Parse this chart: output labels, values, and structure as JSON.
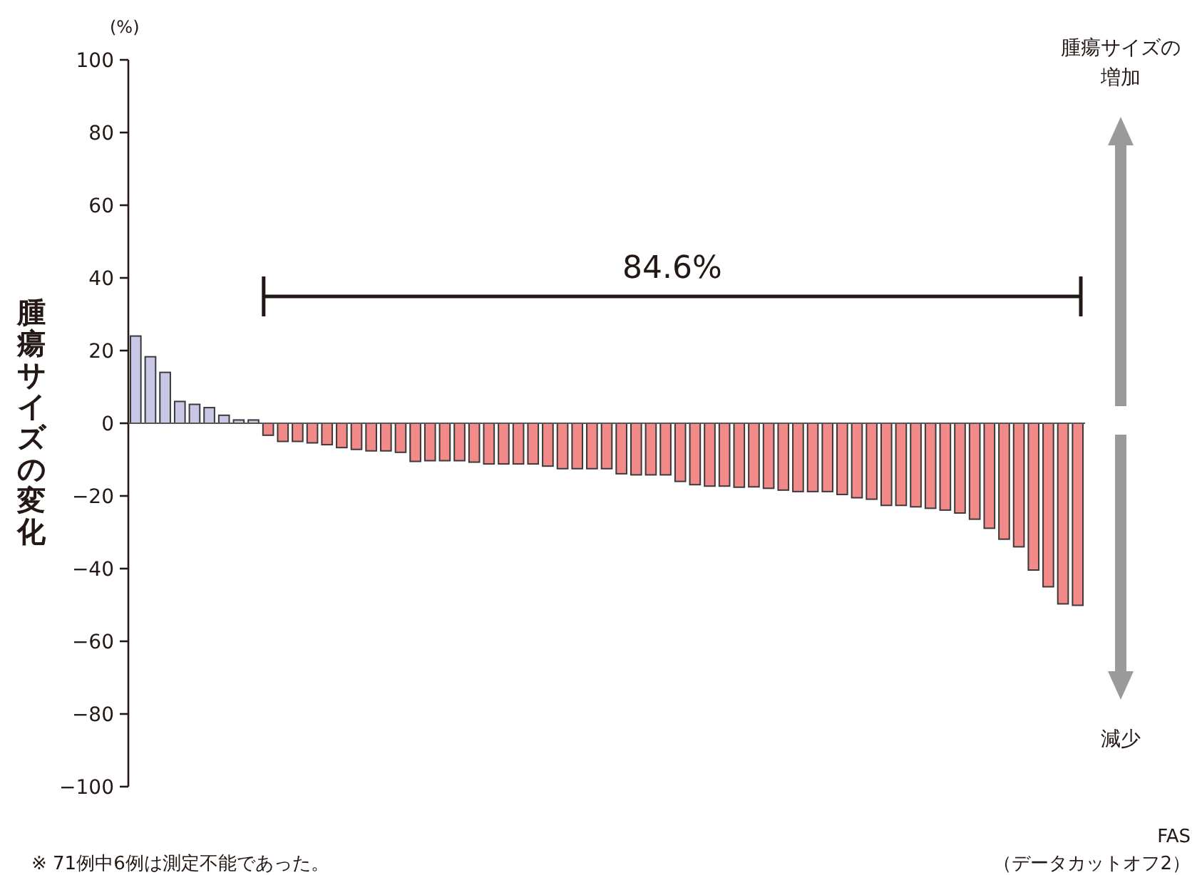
{
  "chart_data": {
    "type": "bar",
    "ylabel": "腫瘍サイズの変化",
    "categories": [
      null,
      null,
      null,
      null,
      null,
      null,
      null,
      null,
      null,
      null,
      null,
      null,
      null,
      null,
      null,
      null,
      null,
      null,
      null,
      null,
      null,
      null,
      null,
      null,
      null,
      null,
      null,
      null,
      null,
      null,
      null,
      null,
      null,
      null,
      null,
      null,
      null,
      null,
      null,
      null,
      null,
      null,
      null,
      null,
      null,
      null,
      null,
      null,
      null,
      null,
      null,
      null,
      null,
      null,
      null,
      null,
      null,
      null,
      null,
      null,
      null,
      null,
      null,
      null,
      null
    ],
    "values": [
      24,
      18.3,
      14,
      6,
      5.2,
      4.3,
      2.2,
      0.9,
      0.9,
      -3.3,
      -5,
      -5,
      -5.4,
      -5.9,
      -6.7,
      -7.2,
      -7.6,
      -7.6,
      -8,
      -10.5,
      -10.3,
      -10.3,
      -10.3,
      -10.7,
      -11.2,
      -11.2,
      -11.2,
      -11.2,
      -11.8,
      -12.5,
      -12.5,
      -12.5,
      -12.5,
      -13.9,
      -14.2,
      -14.2,
      -14.2,
      -16,
      -16.9,
      -17.3,
      -17.3,
      -17.6,
      -17.5,
      -17.9,
      -18.4,
      -18.8,
      -18.8,
      -18.8,
      -19.6,
      -20.5,
      -20.9,
      -22.6,
      -22.6,
      -23,
      -23.4,
      -23.9,
      -24.7,
      -26.4,
      -28.9,
      -31.9,
      -34,
      -40.4,
      -45,
      -49.7,
      -50.1
    ],
    "colors": [
      "#c8c8e6",
      "#c8c8e6",
      "#c8c8e6",
      "#c8c8e6",
      "#c8c8e6",
      "#c8c8e6",
      "#c8c8e6",
      "#c8c8e6",
      "#c8c8e6",
      "#f28a8a",
      "#f28a8a",
      "#f28a8a",
      "#f28a8a",
      "#f28a8a",
      "#f28a8a",
      "#f28a8a",
      "#f28a8a",
      "#f28a8a",
      "#f28a8a",
      "#f28a8a",
      "#f28a8a",
      "#f28a8a",
      "#f28a8a",
      "#f28a8a",
      "#f28a8a",
      "#f28a8a",
      "#f28a8a",
      "#f28a8a",
      "#f28a8a",
      "#f28a8a",
      "#f28a8a",
      "#f28a8a",
      "#f28a8a",
      "#f28a8a",
      "#f28a8a",
      "#f28a8a",
      "#f28a8a",
      "#f28a8a",
      "#f28a8a",
      "#f28a8a",
      "#f28a8a",
      "#f28a8a",
      "#f28a8a",
      "#f28a8a",
      "#f28a8a",
      "#f28a8a",
      "#f28a8a",
      "#f28a8a",
      "#f28a8a",
      "#f28a8a",
      "#f28a8a",
      "#f28a8a",
      "#f28a8a",
      "#f28a8a",
      "#f28a8a",
      "#f28a8a",
      "#f28a8a",
      "#f28a8a",
      "#f28a8a",
      "#f28a8a",
      "#f28a8a",
      "#f28a8a",
      "#f28a8a",
      "#f28a8a",
      "#f28a8a"
    ],
    "ylim": [
      -100,
      100
    ],
    "yticks": [
      {
        "value": -100,
        "label": "−100"
      },
      {
        "value": -80,
        "label": "−80"
      },
      {
        "value": -60,
        "label": "−60"
      },
      {
        "value": -40,
        "label": "−40"
      },
      {
        "value": -20,
        "label": "−20"
      },
      0,
      20,
      40,
      60,
      80,
      100
    ],
    "annotations": [
      "(%)",
      "84.6%",
      "腫瘍サイズの増加",
      "減少",
      "※ 71例中6例は測定不能であった。",
      "FAS",
      "（データカットオフ2）"
    ]
  }
}
